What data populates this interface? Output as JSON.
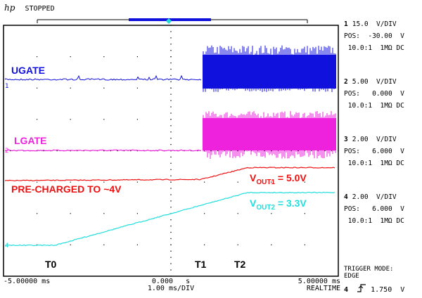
{
  "header": {
    "brand": "hp",
    "status": "STOPPED"
  },
  "colors": {
    "ch1": "#1111dd",
    "ch2": "#ee22dd",
    "ch3": "#ee1111",
    "ch4": "#22dddd",
    "grid": "#000000"
  },
  "labels": {
    "ugate": "UGATE",
    "lgate": "LGATE",
    "precharged": "PRE-CHARGED TO ~4V",
    "vout1_base": "V",
    "vout1_sub": "OUT1",
    "vout1_val": " = 5.0V",
    "vout2_base": "V",
    "vout2_sub": "OUT2",
    "vout2_val": " = 3.3V",
    "t0": "T0",
    "t1": "T1",
    "t2": "T2"
  },
  "ground_markers": {
    "ch1": "1",
    "ch2": "2",
    "ch4": "4"
  },
  "channels": [
    {
      "num": "1",
      "scale": "15.0  V/DIV",
      "pos_label": "POS:",
      "pos_val": "-30.00  V",
      "probe": "10.0:1  1MΩ DC"
    },
    {
      "num": "2",
      "scale": "5.00  V/DIV",
      "pos_label": "POS:",
      "pos_val": "0.000  V",
      "probe": "10.0:1  1MΩ DC"
    },
    {
      "num": "3",
      "scale": "2.00  V/DIV",
      "pos_label": "POS:",
      "pos_val": "6.000  V",
      "probe": "10.0:1  1MΩ DC"
    },
    {
      "num": "4",
      "scale": "2.00  V/DIV",
      "pos_label": "POS:",
      "pos_val": "6.000  V",
      "probe": "10.0:1  1MΩ DC"
    }
  ],
  "trigger": {
    "mode_label": "TRIGGER MODE:",
    "mode": "EDGE",
    "channel": "4",
    "level": "1.750  V"
  },
  "time_axis": {
    "left": "-5.00000 ms",
    "center_val": "0.000",
    "center_unit": "s",
    "scale": "1.00 ms/DIV",
    "right": "5.00000 ms",
    "mode": "REALTIME"
  }
}
